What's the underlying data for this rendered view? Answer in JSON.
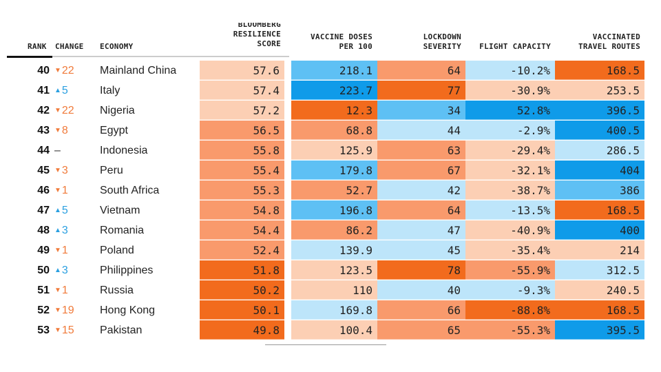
{
  "palette": {
    "peach": "#fccfb4",
    "orange": "#f99a6c",
    "dark_orange": "#f26b1d",
    "light_blue": "#bde5fa",
    "blue": "#5ec0f4",
    "dark_blue": "#0f9be9",
    "up": "#2a9fe0",
    "down": "#f07a3a"
  },
  "chart_data": {
    "type": "table",
    "headers": {
      "rank": "RANK",
      "change": "CHANGE",
      "economy": "ECONOMY",
      "score": [
        "BLOOMBERG",
        "RESILIENCE",
        "SCORE"
      ],
      "vaccine": [
        "VACCINE DOSES",
        "PER 100"
      ],
      "lockdown": [
        "LOCKDOWN",
        "SEVERITY"
      ],
      "flight": [
        "",
        "FLIGHT CAPACITY"
      ],
      "travel": [
        "VACCINATED",
        "TRAVEL ROUTES"
      ]
    },
    "rows": [
      {
        "rank": "40",
        "dir": "down",
        "change": "22",
        "economy": "Mainland China",
        "score": "57.6",
        "score_c": "peach",
        "vaccine": "218.1",
        "vaccine_c": "blue",
        "lockdown": "64",
        "lockdown_c": "orange",
        "flight": "-10.2%",
        "flight_c": "light_blue",
        "travel": "168.5",
        "travel_c": "dark_orange"
      },
      {
        "rank": "41",
        "dir": "up",
        "change": "5",
        "economy": "Italy",
        "score": "57.4",
        "score_c": "peach",
        "vaccine": "223.7",
        "vaccine_c": "dark_blue",
        "lockdown": "77",
        "lockdown_c": "dark_orange",
        "flight": "-30.9%",
        "flight_c": "peach",
        "travel": "253.5",
        "travel_c": "peach"
      },
      {
        "rank": "42",
        "dir": "down",
        "change": "22",
        "economy": "Nigeria",
        "score": "57.2",
        "score_c": "peach",
        "vaccine": "12.3",
        "vaccine_c": "dark_orange",
        "lockdown": "34",
        "lockdown_c": "blue",
        "flight": "52.8%",
        "flight_c": "dark_blue",
        "travel": "396.5",
        "travel_c": "dark_blue"
      },
      {
        "rank": "43",
        "dir": "down",
        "change": "8",
        "economy": "Egypt",
        "score": "56.5",
        "score_c": "orange",
        "vaccine": "68.8",
        "vaccine_c": "orange",
        "lockdown": "44",
        "lockdown_c": "light_blue",
        "flight": "-2.9%",
        "flight_c": "light_blue",
        "travel": "400.5",
        "travel_c": "dark_blue"
      },
      {
        "rank": "44",
        "dir": "none",
        "change": "–",
        "economy": "Indonesia",
        "score": "55.8",
        "score_c": "orange",
        "vaccine": "125.9",
        "vaccine_c": "peach",
        "lockdown": "63",
        "lockdown_c": "orange",
        "flight": "-29.4%",
        "flight_c": "peach",
        "travel": "286.5",
        "travel_c": "light_blue"
      },
      {
        "rank": "45",
        "dir": "down",
        "change": "3",
        "economy": "Peru",
        "score": "55.4",
        "score_c": "orange",
        "vaccine": "179.8",
        "vaccine_c": "blue",
        "lockdown": "67",
        "lockdown_c": "orange",
        "flight": "-32.1%",
        "flight_c": "peach",
        "travel": "404",
        "travel_c": "dark_blue"
      },
      {
        "rank": "46",
        "dir": "down",
        "change": "1",
        "economy": "South Africa",
        "score": "55.3",
        "score_c": "orange",
        "vaccine": "52.7",
        "vaccine_c": "orange",
        "lockdown": "42",
        "lockdown_c": "light_blue",
        "flight": "-38.7%",
        "flight_c": "peach",
        "travel": "386",
        "travel_c": "blue"
      },
      {
        "rank": "47",
        "dir": "up",
        "change": "5",
        "economy": "Vietnam",
        "score": "54.8",
        "score_c": "orange",
        "vaccine": "196.8",
        "vaccine_c": "blue",
        "lockdown": "64",
        "lockdown_c": "orange",
        "flight": "-13.5%",
        "flight_c": "light_blue",
        "travel": "168.5",
        "travel_c": "dark_orange"
      },
      {
        "rank": "48",
        "dir": "up",
        "change": "3",
        "economy": "Romania",
        "score": "54.4",
        "score_c": "orange",
        "vaccine": "86.2",
        "vaccine_c": "orange",
        "lockdown": "47",
        "lockdown_c": "light_blue",
        "flight": "-40.9%",
        "flight_c": "peach",
        "travel": "400",
        "travel_c": "dark_blue"
      },
      {
        "rank": "49",
        "dir": "down",
        "change": "1",
        "economy": "Poland",
        "score": "52.4",
        "score_c": "orange",
        "vaccine": "139.9",
        "vaccine_c": "light_blue",
        "lockdown": "45",
        "lockdown_c": "light_blue",
        "flight": "-35.4%",
        "flight_c": "peach",
        "travel": "214",
        "travel_c": "peach"
      },
      {
        "rank": "50",
        "dir": "up",
        "change": "3",
        "economy": "Philippines",
        "score": "51.8",
        "score_c": "dark_orange",
        "vaccine": "123.5",
        "vaccine_c": "peach",
        "lockdown": "78",
        "lockdown_c": "dark_orange",
        "flight": "-55.9%",
        "flight_c": "orange",
        "travel": "312.5",
        "travel_c": "light_blue"
      },
      {
        "rank": "51",
        "dir": "down",
        "change": "1",
        "economy": "Russia",
        "score": "50.2",
        "score_c": "dark_orange",
        "vaccine": "110",
        "vaccine_c": "peach",
        "lockdown": "40",
        "lockdown_c": "light_blue",
        "flight": "-9.3%",
        "flight_c": "light_blue",
        "travel": "240.5",
        "travel_c": "peach"
      },
      {
        "rank": "52",
        "dir": "down",
        "change": "19",
        "economy": "Hong Kong",
        "score": "50.1",
        "score_c": "dark_orange",
        "vaccine": "169.8",
        "vaccine_c": "light_blue",
        "lockdown": "66",
        "lockdown_c": "orange",
        "flight": "-88.8%",
        "flight_c": "dark_orange",
        "travel": "168.5",
        "travel_c": "dark_orange"
      },
      {
        "rank": "53",
        "dir": "down",
        "change": "15",
        "economy": "Pakistan",
        "score": "49.8",
        "score_c": "dark_orange",
        "vaccine": "100.4",
        "vaccine_c": "peach",
        "lockdown": "65",
        "lockdown_c": "orange",
        "flight": "-55.3%",
        "flight_c": "orange",
        "travel": "395.5",
        "travel_c": "dark_blue"
      }
    ]
  }
}
